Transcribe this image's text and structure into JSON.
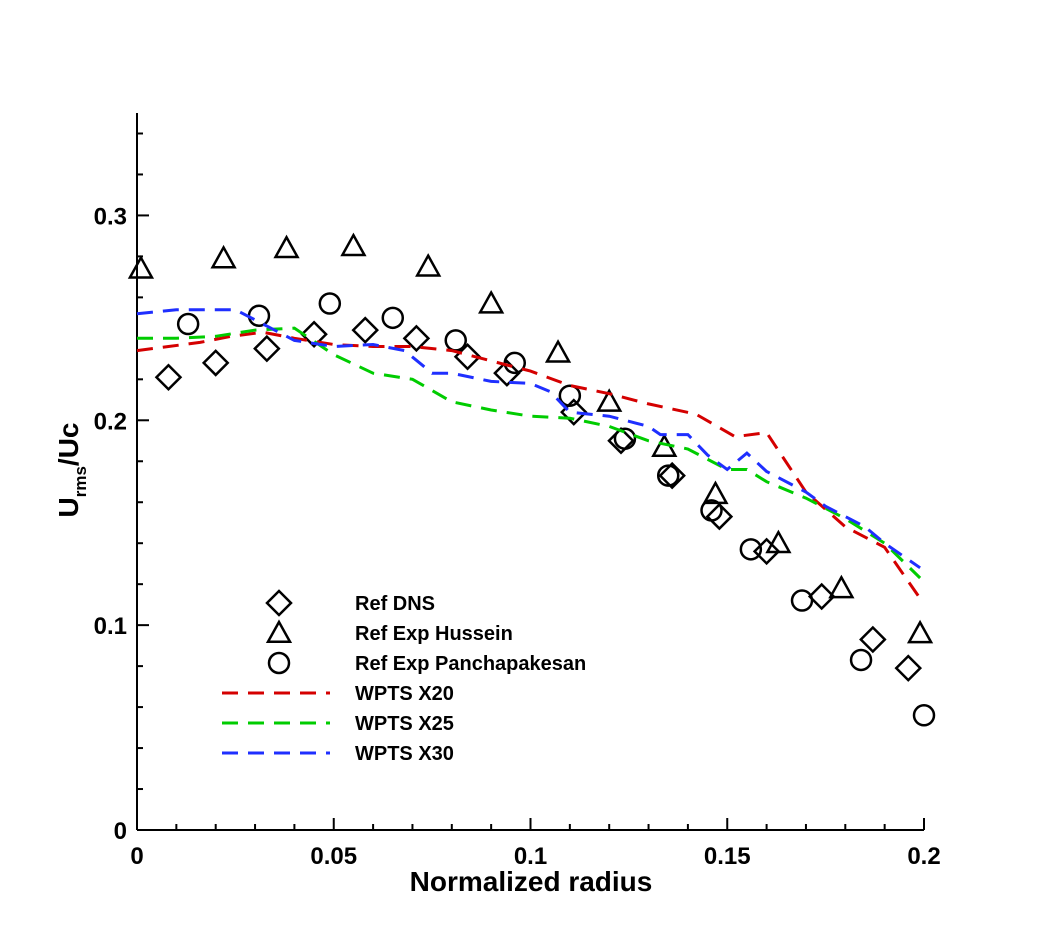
{
  "chart_data": {
    "type": "scatter",
    "title": "",
    "xlabel": "Normalized radius",
    "ylabel_main": "U",
    "ylabel_sub": "rms",
    "ylabel_rest": "/Uc",
    "xlim": [
      0,
      0.2
    ],
    "ylim": [
      0,
      0.35
    ],
    "x_ticks": [
      0,
      0.05,
      0.1,
      0.15,
      0.2
    ],
    "x_tick_labels": [
      "0",
      "0.05",
      "0.1",
      "0.15",
      "0.2"
    ],
    "y_ticks": [
      0,
      0.1,
      0.2,
      0.3
    ],
    "y_tick_labels": [
      "0",
      "0.1",
      "0.2",
      "0.3"
    ],
    "grid": false,
    "legend_position": "lower-left",
    "series": [
      {
        "name": "Ref DNS",
        "kind": "marker",
        "marker": "diamond",
        "color": "#000000",
        "x": [
          0.008,
          0.02,
          0.033,
          0.045,
          0.058,
          0.071,
          0.084,
          0.094,
          0.111,
          0.123,
          0.136,
          0.148,
          0.16,
          0.174,
          0.187,
          0.196
        ],
        "y": [
          0.221,
          0.228,
          0.235,
          0.242,
          0.244,
          0.24,
          0.231,
          0.223,
          0.204,
          0.19,
          0.173,
          0.153,
          0.136,
          0.114,
          0.093,
          0.079
        ]
      },
      {
        "name": "Ref Exp Hussein",
        "kind": "marker",
        "marker": "triangle",
        "color": "#000000",
        "x": [
          0.001,
          0.022,
          0.038,
          0.055,
          0.074,
          0.09,
          0.107,
          0.12,
          0.134,
          0.147,
          0.163,
          0.179,
          0.199
        ],
        "y": [
          0.274,
          0.279,
          0.284,
          0.285,
          0.275,
          0.257,
          0.233,
          0.209,
          0.187,
          0.164,
          0.14,
          0.118,
          0.096
        ]
      },
      {
        "name": "Ref Exp Panchapakesan",
        "kind": "marker",
        "marker": "circle",
        "color": "#000000",
        "x": [
          0.013,
          0.031,
          0.049,
          0.065,
          0.081,
          0.096,
          0.11,
          0.124,
          0.135,
          0.146,
          0.156,
          0.169,
          0.184,
          0.2
        ],
        "y": [
          0.247,
          0.251,
          0.257,
          0.25,
          0.239,
          0.228,
          0.212,
          0.191,
          0.173,
          0.156,
          0.137,
          0.112,
          0.083,
          0.056
        ]
      },
      {
        "name": "WPTS X20",
        "kind": "line",
        "color": "#d40000",
        "x": [
          0,
          0.008,
          0.016,
          0.024,
          0.032,
          0.04,
          0.05,
          0.06,
          0.07,
          0.08,
          0.09,
          0.1,
          0.11,
          0.12,
          0.13,
          0.142,
          0.152,
          0.16,
          0.17,
          0.18,
          0.19,
          0.199
        ],
        "y": [
          0.234,
          0.236,
          0.238,
          0.241,
          0.243,
          0.24,
          0.237,
          0.236,
          0.236,
          0.234,
          0.229,
          0.224,
          0.217,
          0.213,
          0.208,
          0.203,
          0.192,
          0.194,
          0.165,
          0.148,
          0.138,
          0.113
        ]
      },
      {
        "name": "WPTS X25",
        "kind": "line",
        "color": "#00cc00",
        "x": [
          0,
          0.01,
          0.02,
          0.03,
          0.04,
          0.05,
          0.06,
          0.07,
          0.08,
          0.09,
          0.1,
          0.11,
          0.12,
          0.13,
          0.14,
          0.15,
          0.155,
          0.16,
          0.17,
          0.18,
          0.19,
          0.199
        ],
        "y": [
          0.24,
          0.24,
          0.241,
          0.244,
          0.245,
          0.232,
          0.223,
          0.22,
          0.209,
          0.205,
          0.202,
          0.201,
          0.197,
          0.19,
          0.186,
          0.176,
          0.176,
          0.17,
          0.162,
          0.152,
          0.14,
          0.123
        ]
      },
      {
        "name": "WPTS X30",
        "kind": "line",
        "color": "#1f2fff",
        "x": [
          0,
          0.01,
          0.02,
          0.025,
          0.03,
          0.04,
          0.05,
          0.06,
          0.068,
          0.075,
          0.08,
          0.09,
          0.1,
          0.105,
          0.11,
          0.12,
          0.13,
          0.133,
          0.14,
          0.145,
          0.15,
          0.155,
          0.16,
          0.17,
          0.175,
          0.185,
          0.19,
          0.199
        ],
        "y": [
          0.252,
          0.254,
          0.254,
          0.254,
          0.249,
          0.239,
          0.236,
          0.237,
          0.234,
          0.223,
          0.223,
          0.219,
          0.218,
          0.214,
          0.204,
          0.202,
          0.197,
          0.193,
          0.193,
          0.183,
          0.176,
          0.184,
          0.175,
          0.165,
          0.158,
          0.148,
          0.14,
          0.128
        ]
      }
    ]
  }
}
